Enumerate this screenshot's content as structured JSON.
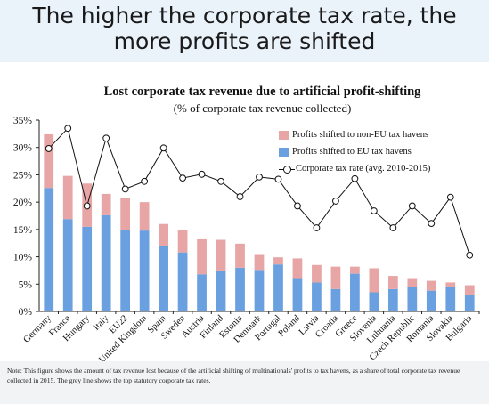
{
  "headline": {
    "line1": "The higher the corporate tax rate, the",
    "line2": "more profits are shifted"
  },
  "note": "Note: This figure shows the amount of tax revenue lost because of the artificial shifting of multinationals' profits to tax havens, as a share of total corporate tax revenue collected in 2015. The grey line shows the top statutory corporate tax rates.",
  "colors": {
    "headline_band": "#eaf2fa",
    "non_eu": "#e8a5a5",
    "eu": "#6aa0e0",
    "line": "#111111"
  },
  "chart_data": {
    "type": "bar",
    "stacked": true,
    "title": "Lost corporate tax revenue due to artificial profit-shifting",
    "subtitle": "(% of corporate tax revenue collected)",
    "xlabel": "",
    "ylabel": "",
    "ylim": [
      0,
      35
    ],
    "yticks": [
      "0%",
      "5%",
      "10%",
      "15%",
      "20%",
      "25%",
      "30%",
      "35%"
    ],
    "grid": false,
    "legend_position": "top-right",
    "categories": [
      "Germany",
      "France",
      "Hungary",
      "Italy",
      "EU22",
      "United Kingdom",
      "Spain",
      "Sweden",
      "Austria",
      "Finland",
      "Estonia",
      "Denmark",
      "Portugal",
      "Poland",
      "Latvia",
      "Croatia",
      "Greece",
      "Slovenia",
      "Lithuania",
      "Czech Republic",
      "Romania",
      "Slovakia",
      "Bulgaria"
    ],
    "series": [
      {
        "name": "Profits shifted to EU tax havens",
        "type": "bar",
        "color": "#6aa0e0",
        "values": [
          22.6,
          16.9,
          15.5,
          17.6,
          14.9,
          14.8,
          11.9,
          10.8,
          6.8,
          7.5,
          8.0,
          7.6,
          8.6,
          6.1,
          5.3,
          4.1,
          6.9,
          3.5,
          4.1,
          4.5,
          3.8,
          4.4,
          3.1
        ]
      },
      {
        "name": "Profits shifted to non-EU tax havens",
        "type": "bar",
        "color": "#e8a5a5",
        "values": [
          9.8,
          7.9,
          7.9,
          3.9,
          5.8,
          5.2,
          4.1,
          4.1,
          6.4,
          5.6,
          4.4,
          2.9,
          1.3,
          3.6,
          3.2,
          4.1,
          1.3,
          4.4,
          2.4,
          1.6,
          1.8,
          0.9,
          1.7
        ]
      },
      {
        "name": "Corporate tax rate (avg. 2010-2015)",
        "type": "line",
        "color": "#111111",
        "values": [
          29.8,
          33.5,
          19.3,
          31.7,
          22.4,
          23.8,
          29.9,
          24.4,
          25.1,
          23.8,
          21.0,
          24.6,
          24.2,
          19.3,
          15.3,
          20.2,
          24.3,
          18.4,
          15.3,
          19.3,
          16.1,
          20.9,
          10.3
        ]
      }
    ]
  }
}
